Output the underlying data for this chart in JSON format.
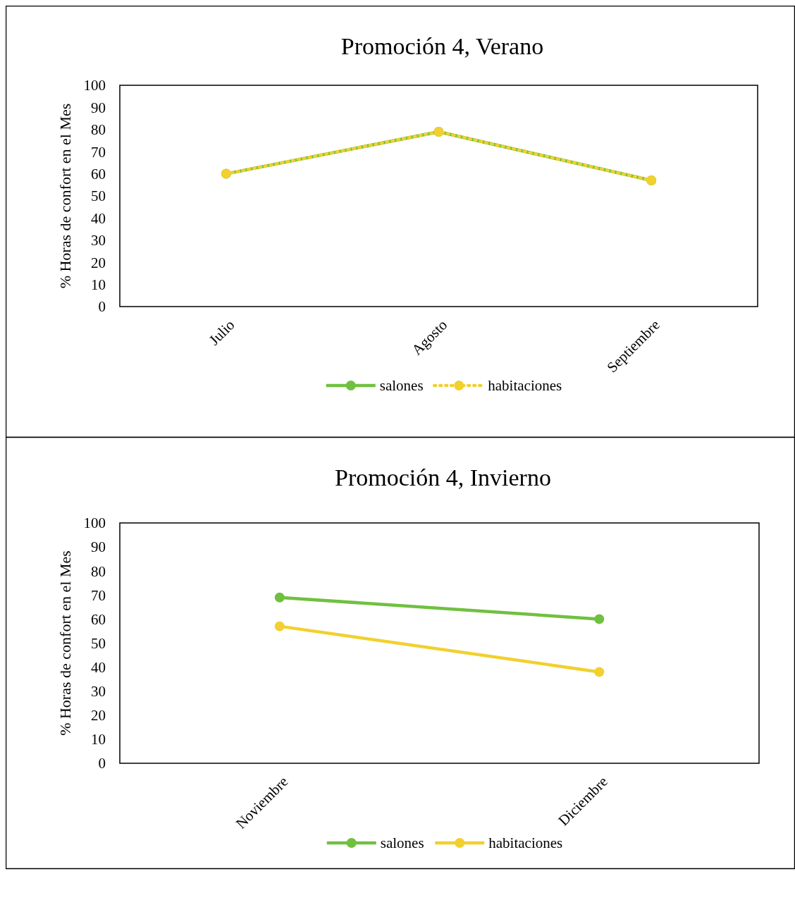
{
  "chart_data": [
    {
      "type": "line",
      "title": "Promoción 4, Verano",
      "ylabel": "% Horas de confort en el Mes",
      "categories": [
        "Julio",
        "Agosto",
        "Septiembre"
      ],
      "series": [
        {
          "name": "salones",
          "color": "#70c040",
          "values": [
            60,
            79,
            57
          ],
          "line_style": "solid"
        },
        {
          "name": "habitaciones",
          "color": "#f2d02e",
          "values": [
            60,
            79,
            57
          ],
          "line_style": "dotted"
        }
      ],
      "ylim": [
        0,
        100
      ],
      "yticks": [
        0,
        10,
        20,
        30,
        40,
        50,
        60,
        70,
        80,
        90,
        100
      ],
      "grid": false,
      "legend": "bottom",
      "marker": "circle"
    },
    {
      "type": "line",
      "title": "Promoción 4, Invierno",
      "ylabel": "% Horas de confort en el Mes",
      "categories": [
        "Noviembre",
        "Diciembre"
      ],
      "series": [
        {
          "name": "salones",
          "color": "#70c040",
          "values": [
            69,
            60
          ],
          "line_style": "solid"
        },
        {
          "name": "habitaciones",
          "color": "#f2d02e",
          "values": [
            57,
            38
          ],
          "line_style": "solid"
        }
      ],
      "ylim": [
        0,
        100
      ],
      "yticks": [
        0,
        10,
        20,
        30,
        40,
        50,
        60,
        70,
        80,
        90,
        100
      ],
      "grid": false,
      "legend": "bottom",
      "marker": "circle"
    }
  ]
}
